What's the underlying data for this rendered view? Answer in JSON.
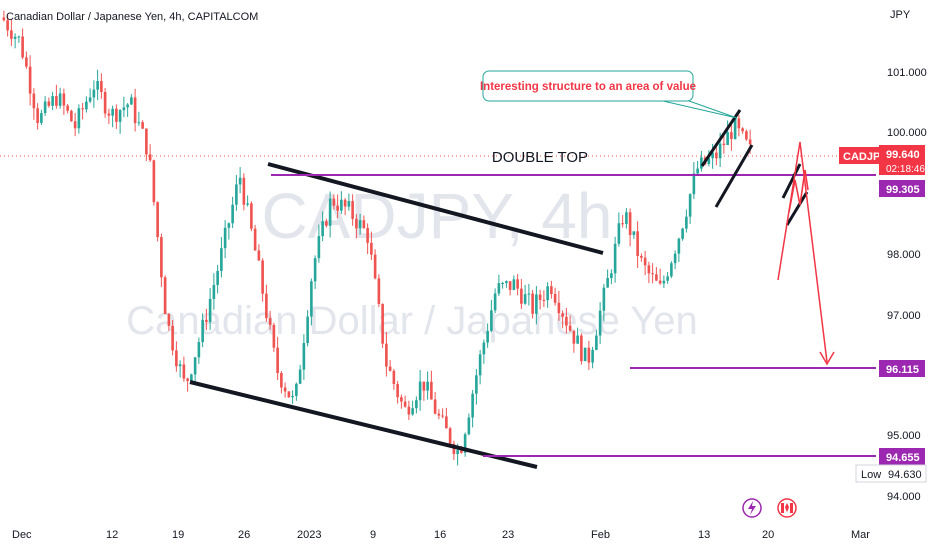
{
  "header": {
    "symbol_title": "Canadian Dollar / Japanese Yen, 4h, CAPITALCOM"
  },
  "watermark": {
    "ticker": "CADJPY, 4h",
    "description": "Canadian Dollar / Japanese Yen"
  },
  "annotations": {
    "callout": "Interesting structure to an area of value",
    "double_top": "DOUBLE TOP"
  },
  "colors": {
    "up": "#26a69a",
    "down": "#ef5350",
    "purple_line": "#9c27b0",
    "trend_line": "#131722",
    "red_tag": "#f23645",
    "callout_border": "#26a69a",
    "callout_text": "#f23645"
  },
  "price_axis": {
    "currency": "JPY",
    "ticks": [
      "101.000",
      "100.000",
      "98.000",
      "97.000",
      "95.000",
      "94.000"
    ]
  },
  "price_tags": {
    "current": {
      "symbol": "CADJPY",
      "price": "99.640",
      "countdown": "02:18:46"
    },
    "level_1": "99.305",
    "level_2": "96.115",
    "level_3": "94.655",
    "low": {
      "label": "Low",
      "value": "94.630"
    }
  },
  "time_axis": {
    "ticks": [
      "Dec",
      "12",
      "19",
      "26",
      "2023",
      "9",
      "16",
      "23",
      "Feb",
      "13",
      "20",
      "Mar"
    ]
  },
  "chart_data": {
    "type": "candlestick",
    "title": "Canadian Dollar / Japanese Yen, 4h, CAPITALCOM",
    "symbol": "CADJPY",
    "timeframe": "4h",
    "y_unit": "JPY",
    "ylim": [
      93.9,
      102.3
    ],
    "x_range": [
      "Dec",
      "Mar"
    ],
    "path_points": [
      [
        "Dec",
        101.9
      ],
      [
        "Dec 3",
        101.5
      ],
      [
        "Dec 6",
        100.2
      ],
      [
        "Dec 9",
        100.6
      ],
      [
        "Dec 12",
        100.1
      ],
      [
        "Dec 14",
        100.8
      ],
      [
        "Dec 16",
        100.3
      ],
      [
        "Dec 18",
        100.5
      ],
      [
        "Dec 19",
        99.7
      ],
      [
        "Dec 20",
        96.9
      ],
      [
        "Dec 21",
        95.8
      ],
      [
        "Dec 23",
        96.8
      ],
      [
        "Dec 26",
        98.0
      ],
      [
        "Dec 28",
        99.3
      ],
      [
        "Jan 2",
        97.8
      ],
      [
        "Jan 5",
        96.1
      ],
      [
        "Jan 6",
        95.5
      ],
      [
        "Jan 8",
        97.8
      ],
      [
        "Jan 10",
        98.9
      ],
      [
        "Jan 13",
        98.7
      ],
      [
        "Jan 14",
        98.3
      ],
      [
        "Jan 15",
        96.2
      ],
      [
        "Jan 17",
        95.4
      ],
      [
        "Jan 18",
        95.9
      ],
      [
        "Jan 19",
        95.2
      ],
      [
        "Jan 20",
        94.7
      ],
      [
        "Jan 22",
        96.1
      ],
      [
        "Jan 24",
        97.4
      ],
      [
        "Jan 27",
        97.5
      ],
      [
        "Jan 30",
        97.1
      ],
      [
        "Feb 1",
        97.5
      ],
      [
        "Feb 3",
        96.8
      ],
      [
        "Feb 4",
        96.2
      ],
      [
        "Feb 5",
        97.4
      ],
      [
        "Feb 6",
        98.7
      ],
      [
        "Feb 8",
        97.8
      ],
      [
        "Feb 11",
        97.4
      ],
      [
        "Feb 12",
        98.3
      ],
      [
        "Feb 14",
        99.4
      ],
      [
        "Feb 16",
        99.6
      ],
      [
        "Feb 17",
        100.1
      ],
      [
        "Feb 18",
        99.64
      ]
    ],
    "horizontal_levels": [
      {
        "price": 99.305,
        "label": "99.305"
      },
      {
        "price": 96.115,
        "label": "96.115"
      },
      {
        "price": 94.655,
        "label": "94.655"
      }
    ],
    "current_price": 99.64,
    "low": 94.63,
    "annotations": [
      "DOUBLE TOP",
      "Interesting structure to an area of value"
    ]
  }
}
